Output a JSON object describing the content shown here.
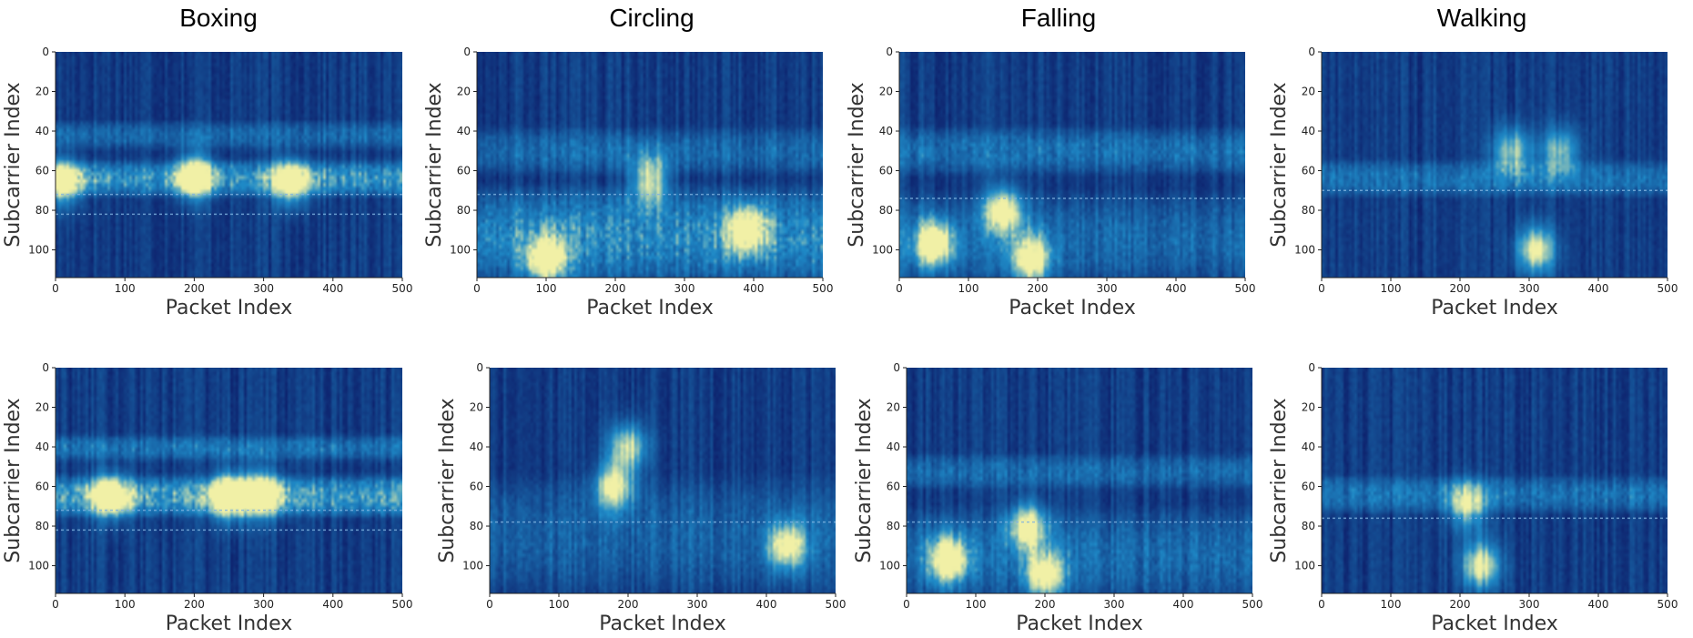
{
  "figure": {
    "column_titles": [
      "Boxing",
      "Circling",
      "Falling",
      "Walking"
    ]
  },
  "colors": {
    "cmap_low": "#0d1f6b",
    "cmap_mid": "#1f8cc9",
    "cmap_high": "#f1f0a6",
    "axis": "#222222"
  },
  "chart_data": [
    {
      "type": "heatmap",
      "title": "Boxing",
      "row": 1,
      "xlabel": "Packet Index",
      "ylabel": "Subcarrier Index",
      "xlim": [
        0,
        500
      ],
      "ylim": [
        0,
        114
      ],
      "xticks": [
        "0",
        "100",
        "200",
        "300",
        "400",
        "500"
      ],
      "yticks": [
        "0",
        "20",
        "40",
        "60",
        "80",
        "100"
      ],
      "bands": [
        {
          "y": [
            56,
            72
          ],
          "level": 0.55
        },
        {
          "y": [
            36,
            48
          ],
          "level": 0.3
        }
      ],
      "hotspots": [
        {
          "x": 10,
          "y": 66,
          "level": 0.8
        },
        {
          "x": 200,
          "y": 63,
          "level": 0.9
        },
        {
          "x": 340,
          "y": 66,
          "level": 0.85
        }
      ],
      "dash_rows": [
        72,
        82
      ]
    },
    {
      "type": "heatmap",
      "title": "Circling",
      "row": 1,
      "xlabel": "Packet Index",
      "ylabel": "Subcarrier Index",
      "xlim": [
        0,
        500
      ],
      "ylim": [
        0,
        114
      ],
      "xticks": [
        "0",
        "100",
        "200",
        "300",
        "400",
        "500"
      ],
      "yticks": [
        "0",
        "20",
        "40",
        "60",
        "80",
        "100"
      ],
      "bands": [
        {
          "y": [
            72,
            114
          ],
          "level": 0.5
        },
        {
          "y": [
            40,
            60
          ],
          "level": 0.3
        }
      ],
      "hotspots": [
        {
          "x": 100,
          "y": 105,
          "level": 0.9
        },
        {
          "x": 250,
          "y": 65,
          "level": 0.8
        },
        {
          "x": 390,
          "y": 90,
          "level": 0.85
        }
      ],
      "dash_rows": [
        72
      ]
    },
    {
      "type": "heatmap",
      "title": "Falling",
      "row": 1,
      "xlabel": "Packet Index",
      "ylabel": "Subcarrier Index",
      "xlim": [
        0,
        500
      ],
      "ylim": [
        0,
        114
      ],
      "xticks": [
        "0",
        "100",
        "200",
        "300",
        "400",
        "500"
      ],
      "yticks": [
        "0",
        "20",
        "40",
        "60",
        "80",
        "100"
      ],
      "bands": [
        {
          "y": [
            40,
            60
          ],
          "level": 0.35
        },
        {
          "y": [
            75,
            114
          ],
          "level": 0.3
        }
      ],
      "hotspots": [
        {
          "x": 50,
          "y": 97,
          "level": 0.95
        },
        {
          "x": 150,
          "y": 80,
          "level": 0.85
        },
        {
          "x": 190,
          "y": 105,
          "level": 0.9
        }
      ],
      "dash_rows": [
        74
      ]
    },
    {
      "type": "heatmap",
      "title": "Walking",
      "row": 1,
      "xlabel": "Packet Index",
      "ylabel": "Subcarrier Index",
      "xlim": [
        0,
        500
      ],
      "ylim": [
        0,
        114
      ],
      "xticks": [
        "0",
        "100",
        "200",
        "300",
        "400",
        "500"
      ],
      "yticks": [
        "0",
        "20",
        "40",
        "60",
        "80",
        "100"
      ],
      "bands": [
        {
          "y": [
            56,
            72
          ],
          "level": 0.35
        }
      ],
      "hotspots": [
        {
          "x": 310,
          "y": 100,
          "level": 0.9
        },
        {
          "x": 275,
          "y": 50,
          "level": 0.7
        },
        {
          "x": 345,
          "y": 50,
          "level": 0.65
        }
      ],
      "dash_rows": [
        70
      ]
    },
    {
      "type": "heatmap",
      "title": "Boxing",
      "row": 2,
      "xlabel": "Packet Index",
      "ylabel": "Subcarrier Index",
      "xlim": [
        0,
        500
      ],
      "ylim": [
        0,
        114
      ],
      "xticks": [
        "0",
        "100",
        "200",
        "300",
        "400",
        "500"
      ],
      "yticks": [
        "0",
        "20",
        "40",
        "60",
        "80",
        "100"
      ],
      "bands": [
        {
          "y": [
            56,
            74
          ],
          "level": 0.6
        },
        {
          "y": [
            35,
            46
          ],
          "level": 0.35
        }
      ],
      "hotspots": [
        {
          "x": 80,
          "y": 65,
          "level": 0.8
        },
        {
          "x": 250,
          "y": 65,
          "level": 0.95
        },
        {
          "x": 300,
          "y": 64,
          "level": 0.85
        }
      ],
      "dash_rows": [
        72,
        82
      ]
    },
    {
      "type": "heatmap",
      "title": "Circling",
      "row": 2,
      "xlabel": "Packet Index",
      "ylabel": "Subcarrier Index",
      "xlim": [
        0,
        500
      ],
      "ylim": [
        0,
        114
      ],
      "xticks": [
        "0",
        "100",
        "200",
        "300",
        "400",
        "500"
      ],
      "yticks": [
        "0",
        "20",
        "40",
        "60",
        "80",
        "100"
      ],
      "bands": [
        {
          "y": [
            60,
            110
          ],
          "level": 0.25
        }
      ],
      "hotspots": [
        {
          "x": 180,
          "y": 60,
          "level": 0.85
        },
        {
          "x": 200,
          "y": 40,
          "level": 0.8
        },
        {
          "x": 430,
          "y": 90,
          "level": 0.8
        }
      ],
      "dash_rows": [
        78
      ]
    },
    {
      "type": "heatmap",
      "title": "Falling",
      "row": 2,
      "xlabel": "Packet Index",
      "ylabel": "Subcarrier Index",
      "xlim": [
        0,
        500
      ],
      "ylim": [
        0,
        114
      ],
      "xticks": [
        "0",
        "100",
        "200",
        "300",
        "400",
        "500"
      ],
      "yticks": [
        "0",
        "20",
        "40",
        "60",
        "80",
        "100"
      ],
      "bands": [
        {
          "y": [
            45,
            60
          ],
          "level": 0.3
        },
        {
          "y": [
            75,
            114
          ],
          "level": 0.3
        }
      ],
      "hotspots": [
        {
          "x": 60,
          "y": 97,
          "level": 0.95
        },
        {
          "x": 175,
          "y": 80,
          "level": 0.85
        },
        {
          "x": 200,
          "y": 105,
          "level": 0.85
        }
      ],
      "dash_rows": [
        78
      ]
    },
    {
      "type": "heatmap",
      "title": "Walking",
      "row": 2,
      "xlabel": "Packet Index",
      "ylabel": "Subcarrier Index",
      "xlim": [
        0,
        500
      ],
      "ylim": [
        0,
        114
      ],
      "xticks": [
        "0",
        "100",
        "200",
        "300",
        "400",
        "500"
      ],
      "yticks": [
        "0",
        "20",
        "40",
        "60",
        "80",
        "100"
      ],
      "bands": [
        {
          "y": [
            56,
            72
          ],
          "level": 0.35
        }
      ],
      "hotspots": [
        {
          "x": 230,
          "y": 100,
          "level": 0.9
        },
        {
          "x": 210,
          "y": 70,
          "level": 0.7
        }
      ],
      "dash_rows": [
        76
      ]
    }
  ]
}
